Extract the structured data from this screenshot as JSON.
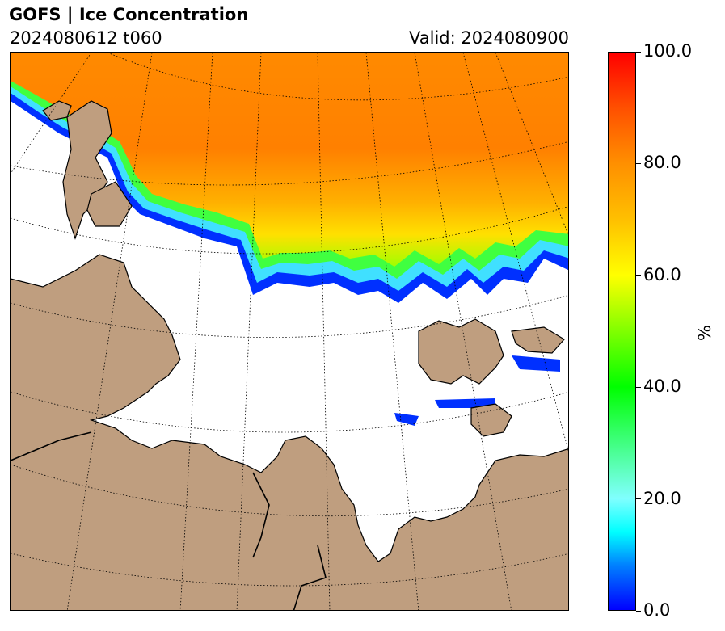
{
  "header": {
    "title": "GOFS  |  Ice Concentration",
    "cycle": "2024080612 t060",
    "valid": "Valid: 2024080900"
  },
  "colors": {
    "land": "#bf9e7f",
    "ocean": "#ffffff",
    "coastline": "#000000"
  },
  "colorbar": {
    "unit": "%",
    "range": [
      0,
      100
    ],
    "ticks": [
      {
        "value": 0,
        "label": "0.0"
      },
      {
        "value": 20,
        "label": "20.0"
      },
      {
        "value": 40,
        "label": "40.0"
      },
      {
        "value": 60,
        "label": "60.0"
      },
      {
        "value": 80,
        "label": "80.0"
      },
      {
        "value": 100,
        "label": "100.0"
      }
    ]
  }
}
